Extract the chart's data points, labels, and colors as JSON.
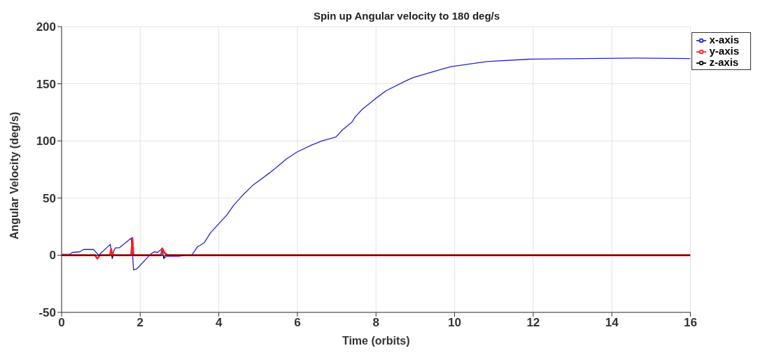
{
  "chart_data": {
    "type": "line",
    "title": "Spin up Angular velocity to 180 deg/s",
    "xlabel": "Time (orbits)",
    "ylabel": "Angular Velocity (deg/s)",
    "xlim": [
      0,
      16
    ],
    "xticks": [
      0,
      2,
      4,
      6,
      8,
      10,
      12,
      14,
      16
    ],
    "ylim": [
      -50,
      200
    ],
    "yticks": [
      -50,
      0,
      50,
      100,
      150,
      200
    ],
    "grid": true,
    "legend": "top right",
    "marker": "none",
    "line_style": "solid",
    "series": [
      {
        "name": "x-axis",
        "color": "#2323d8",
        "x": [
          0,
          0.21,
          0.27,
          0.46,
          0.56,
          0.81,
          0.91,
          0.94,
          1.24,
          1.26,
          1.29,
          1.33,
          1.37,
          1.47,
          1.77,
          1.8,
          1.83,
          1.91,
          2.28,
          2.36,
          2.44,
          2.56,
          2.6,
          2.66,
          2.98,
          3.14,
          3.28,
          3.33,
          3.46,
          3.52,
          3.63,
          3.79,
          4.11,
          4.2,
          4.38,
          4.62,
          4.86,
          5.29,
          5.45,
          5.72,
          5.99,
          6.36,
          6.63,
          6.98,
          7.14,
          7.39,
          7.47,
          7.65,
          7.98,
          8.25,
          8.78,
          8.94,
          9.59,
          9.91,
          10.82,
          11.9,
          14.63,
          16
        ],
        "values": [
          0.8,
          0.8,
          2.4,
          3,
          5,
          5,
          1.4,
          0,
          9.5,
          4,
          -3,
          4,
          6.5,
          6.5,
          15,
          4,
          -12.8,
          -12,
          1.4,
          3,
          2.4,
          5.9,
          -3,
          -1,
          -1,
          0,
          0,
          1,
          7.5,
          8.5,
          11,
          19.6,
          31.7,
          35,
          43.8,
          52.9,
          61,
          72,
          76.4,
          84.2,
          90.3,
          96.4,
          100,
          103.4,
          109.5,
          116.5,
          121,
          127.7,
          136.8,
          143.8,
          152.9,
          155.3,
          162,
          165,
          169.5,
          171.5,
          172.5,
          172
        ]
      },
      {
        "name": "y-axis",
        "color": "#ff2020",
        "x": [
          0,
          0.85,
          0.91,
          0.97,
          1.23,
          1.26,
          1.3,
          1.77,
          1.8,
          1.83,
          2.53,
          2.56,
          2.62,
          2.7,
          16
        ],
        "values": [
          0,
          0,
          -3,
          0,
          0,
          5.6,
          0,
          0,
          15,
          0,
          0,
          6,
          2,
          0,
          0
        ]
      },
      {
        "name": "z-axis",
        "color": "#000000",
        "x": [
          0,
          1.27,
          1.29,
          1.31,
          2.58,
          2.6,
          2.63,
          16
        ],
        "values": [
          0,
          0,
          -2,
          0,
          0,
          -2,
          0,
          0
        ]
      }
    ]
  }
}
